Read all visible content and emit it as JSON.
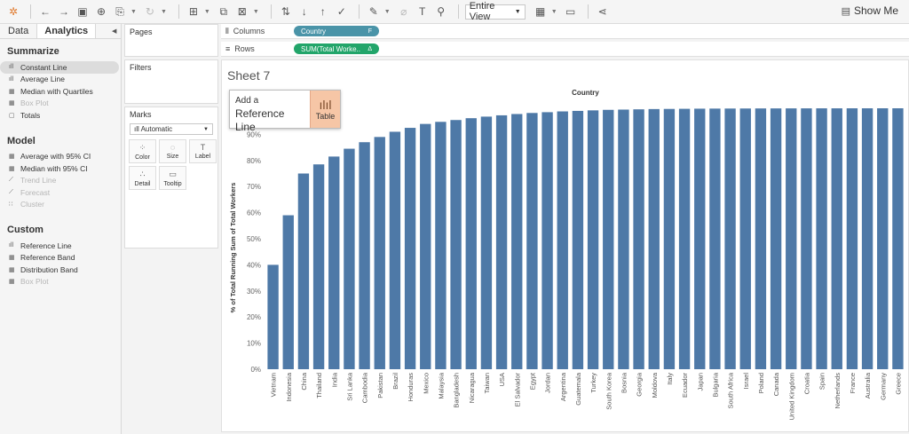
{
  "toolbar": {
    "view_select": "Entire View",
    "show_me": "Show Me",
    "icons": [
      "tableau-logo-icon",
      "back-icon",
      "forward-icon",
      "save-icon",
      "new-datasource-icon",
      "pause-icon",
      "refresh-icon",
      "new-worksheet-icon",
      "duplicate-icon",
      "clear-icon",
      "swap-icon",
      "sort-asc-icon",
      "sort-desc-icon",
      "highlight-icon",
      "group-icon",
      "label-icon",
      "fix-axes-icon",
      "fit-icon",
      "presentation-icon",
      "share-icon"
    ]
  },
  "sidebar": {
    "tabs": [
      {
        "label": "Data"
      },
      {
        "label": "Analytics"
      }
    ],
    "sections": [
      {
        "title": "Summarize",
        "items": [
          {
            "label": "Constant Line",
            "icon": "bar",
            "selected": true,
            "disabled": false
          },
          {
            "label": "Average Line",
            "icon": "bar",
            "selected": false,
            "disabled": false
          },
          {
            "label": "Median with Quartiles",
            "icon": "box",
            "selected": false,
            "disabled": false
          },
          {
            "label": "Box Plot",
            "icon": "box",
            "selected": false,
            "disabled": true
          },
          {
            "label": "Totals",
            "icon": "total",
            "selected": false,
            "disabled": false
          }
        ]
      },
      {
        "title": "Model",
        "items": [
          {
            "label": "Average with 95% CI",
            "icon": "box",
            "selected": false,
            "disabled": false
          },
          {
            "label": "Median with 95% CI",
            "icon": "box",
            "selected": false,
            "disabled": false
          },
          {
            "label": "Trend Line",
            "icon": "trend",
            "selected": false,
            "disabled": true
          },
          {
            "label": "Forecast",
            "icon": "trend",
            "selected": false,
            "disabled": true
          },
          {
            "label": "Cluster",
            "icon": "dots",
            "selected": false,
            "disabled": true
          }
        ]
      },
      {
        "title": "Custom",
        "items": [
          {
            "label": "Reference Line",
            "icon": "bar",
            "selected": false,
            "disabled": false
          },
          {
            "label": "Reference Band",
            "icon": "box",
            "selected": false,
            "disabled": false
          },
          {
            "label": "Distribution Band",
            "icon": "box",
            "selected": false,
            "disabled": false
          },
          {
            "label": "Box Plot",
            "icon": "box",
            "selected": false,
            "disabled": true
          }
        ]
      }
    ]
  },
  "cards": {
    "pages": "Pages",
    "filters": "Filters",
    "marks": "Marks",
    "mark_type": "Automatic",
    "mark_buttons": [
      {
        "label": "Color",
        "icon": "⁘"
      },
      {
        "label": "Size",
        "icon": "◌"
      },
      {
        "label": "Label",
        "icon": "T"
      },
      {
        "label": "Detail",
        "icon": "∴"
      },
      {
        "label": "Tooltip",
        "icon": "▭"
      }
    ]
  },
  "shelves": {
    "columns_label": "Columns",
    "columns_pill": "Country",
    "rows_label": "Rows",
    "rows_pill": "SUM(Total Worke..",
    "rows_pill_suffix": "Δ"
  },
  "view": {
    "sheet_title": "Sheet 7",
    "popup_line1": "Add a",
    "popup_line2": "Reference Line",
    "popup_target": "Table"
  },
  "colors": {
    "bar": "#4e79a7",
    "dim_pill": "#4a94a8",
    "measure_pill": "#22a56a",
    "popup_target": "#f6c6a6"
  },
  "chart_data": {
    "type": "bar",
    "title": "Country",
    "ylabel": "% of Total Running Sum of Total Workers",
    "xlabel": "",
    "ylim": [
      0,
      100
    ],
    "yticks": [
      "0%",
      "10%",
      "20%",
      "30%",
      "40%",
      "50%",
      "60%",
      "70%",
      "80%",
      "90%"
    ],
    "categories": [
      "Vietnam",
      "Indonesia",
      "China",
      "Thailand",
      "India",
      "Sri Lanka",
      "Cambodia",
      "Pakistan",
      "Brazil",
      "Honduras",
      "Mexico",
      "Malaysia",
      "Bangladesh",
      "Nicaragua",
      "Taiwan",
      "USA",
      "El Salvador",
      "Egypt",
      "Jordan",
      "Argentina",
      "Guatemala",
      "Turkey",
      "South Korea",
      "Bosnia",
      "Georgia",
      "Moldova",
      "Italy",
      "Ecuador",
      "Japan",
      "Bulgaria",
      "South Africa",
      "Israel",
      "Poland",
      "Canada",
      "United Kingdom",
      "Croatia",
      "Spain",
      "Netherlands",
      "France",
      "Australia",
      "Germany",
      "Greece"
    ],
    "values": [
      40,
      59,
      75,
      78.5,
      81.5,
      84.5,
      87,
      89,
      91,
      92.5,
      94,
      94.8,
      95.5,
      96.2,
      96.8,
      97.3,
      97.8,
      98.2,
      98.5,
      98.8,
      99.0,
      99.2,
      99.4,
      99.5,
      99.6,
      99.7,
      99.75,
      99.8,
      99.85,
      99.88,
      99.9,
      99.92,
      99.94,
      99.95,
      99.96,
      99.97,
      99.98,
      99.98,
      99.99,
      99.99,
      100,
      100
    ]
  }
}
